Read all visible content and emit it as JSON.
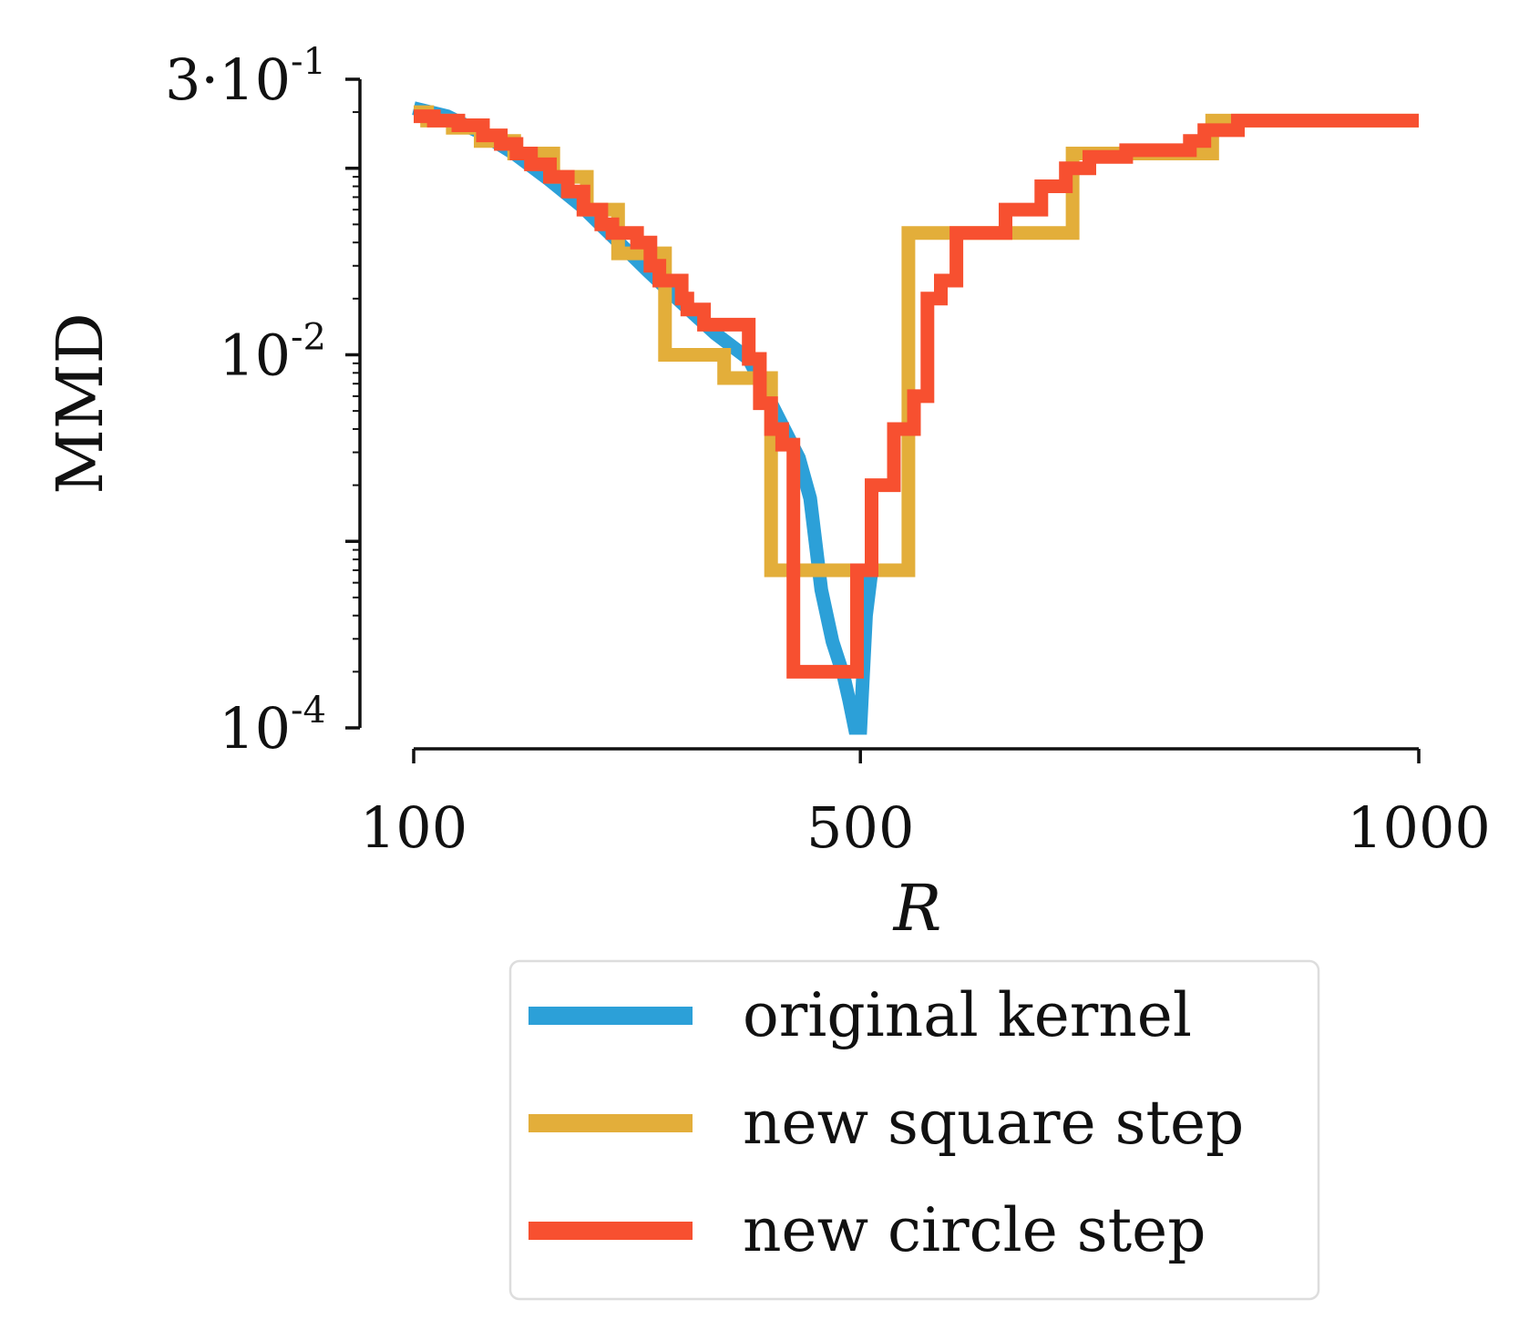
{
  "chart_data": {
    "type": "line",
    "title": "",
    "xlabel": "R",
    "ylabel": "MMD",
    "xlim": [
      100,
      1000
    ],
    "ylim": [
      0.0001,
      0.3
    ],
    "yscale": "log",
    "x_ticks": [
      {
        "value": 100,
        "label": "100"
      },
      {
        "value": 500,
        "label": "500"
      },
      {
        "value": 1000,
        "label": "1000"
      }
    ],
    "y_ticks": [
      {
        "value": 0.3,
        "base": "3·10",
        "exp": "-1"
      },
      {
        "value": 0.01,
        "base": "10",
        "exp": "-2"
      },
      {
        "value": 0.0001,
        "base": "10",
        "exp": "-4"
      }
    ],
    "grid": false,
    "legend_position": "bottom",
    "series": [
      {
        "name": "original kernel",
        "color": "#2ca0d8",
        "x": [
          100,
          130,
          160,
          190,
          220,
          250,
          280,
          310,
          340,
          370,
          400,
          430,
          445,
          455,
          465,
          475,
          485,
          490,
          495,
          500,
          505,
          510,
          520
        ],
        "y": [
          0.21,
          0.19,
          0.155,
          0.12,
          0.088,
          0.063,
          0.042,
          0.028,
          0.019,
          0.013,
          0.0095,
          0.0042,
          0.0028,
          0.0017,
          0.00055,
          0.00029,
          0.00019,
          0.00014,
          0.0001,
          0.0001,
          0.0004,
          0.0007,
          0.0007
        ]
      },
      {
        "name": "new square step",
        "color": "#e3ae3a",
        "x": [
          100,
          112,
          112,
          135,
          135,
          160,
          160,
          190,
          190,
          225,
          225,
          255,
          255,
          283,
          283,
          325,
          325,
          378,
          378,
          420,
          420,
          455,
          455,
          498,
          498,
          508,
          508,
          543,
          543,
          690,
          690,
          815,
          815,
          1000
        ],
        "y": [
          0.2,
          0.2,
          0.18,
          0.18,
          0.165,
          0.165,
          0.14,
          0.14,
          0.12,
          0.12,
          0.09,
          0.09,
          0.06,
          0.06,
          0.035,
          0.035,
          0.01,
          0.01,
          0.0075,
          0.0075,
          0.0007,
          0.0007,
          0.0007,
          0.0007,
          0.0007,
          0.0007,
          0.0007,
          0.0007,
          0.045,
          0.045,
          0.12,
          0.12,
          0.18,
          0.18
        ]
      },
      {
        "name": "new circle step",
        "color": "#f75030",
        "x": [
          100,
          118,
          118,
          140,
          140,
          162,
          162,
          178,
          178,
          192,
          192,
          205,
          205,
          222,
          222,
          238,
          238,
          252,
          252,
          268,
          268,
          278,
          278,
          300,
          300,
          312,
          312,
          320,
          320,
          340,
          340,
          345,
          345,
          360,
          360,
          400,
          400,
          410,
          410,
          420,
          420,
          430,
          430,
          440,
          440,
          460,
          460,
          463,
          463,
          497,
          497,
          503,
          503,
          510,
          510,
          530,
          530,
          548,
          548,
          560,
          560,
          572,
          572,
          586,
          586,
          630,
          630,
          662,
          662,
          684,
          684,
          705,
          705,
          738,
          738,
          795,
          795,
          808,
          808,
          838,
          838,
          1000
        ],
        "y": [
          0.19,
          0.19,
          0.18,
          0.18,
          0.17,
          0.17,
          0.15,
          0.15,
          0.135,
          0.135,
          0.12,
          0.12,
          0.105,
          0.105,
          0.09,
          0.09,
          0.075,
          0.075,
          0.06,
          0.06,
          0.05,
          0.05,
          0.045,
          0.045,
          0.04,
          0.04,
          0.03,
          0.03,
          0.025,
          0.025,
          0.02,
          0.02,
          0.0175,
          0.0175,
          0.0145,
          0.0145,
          0.0095,
          0.0095,
          0.0055,
          0.0055,
          0.004,
          0.004,
          0.0033,
          0.0033,
          0.0002,
          0.0002,
          0.0002,
          0.0002,
          0.0002,
          0.0002,
          0.0007,
          0.0007,
          0.0007,
          0.0007,
          0.002,
          0.002,
          0.004,
          0.004,
          0.006,
          0.006,
          0.02,
          0.02,
          0.025,
          0.025,
          0.045,
          0.045,
          0.06,
          0.06,
          0.08,
          0.08,
          0.1,
          0.1,
          0.115,
          0.115,
          0.125,
          0.125,
          0.14,
          0.14,
          0.16,
          0.16,
          0.18,
          0.18
        ]
      }
    ]
  }
}
